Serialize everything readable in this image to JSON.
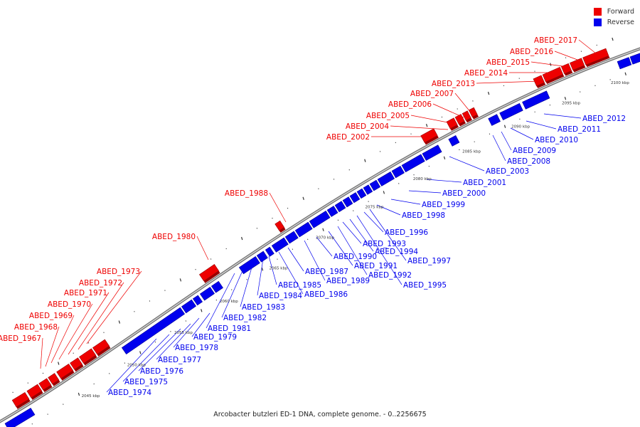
{
  "legend": {
    "forward": {
      "label": "Forward",
      "color": "#ee0000"
    },
    "reverse": {
      "label": "Reverse",
      "color": "#0000ee"
    }
  },
  "caption": "Arcobacter butzleri ED-1 DNA, complete genome. - 0..2256675",
  "axis_ticks": [
    "2045 kbp",
    "2050 kbp",
    "2055 kbp",
    "2060 kbp",
    "2065 kbp",
    "2070 kbp",
    "2075 kbp",
    "2080 kbp",
    "2085 kbp",
    "2090 kbp",
    "2095 kbp",
    "2100 kbp"
  ],
  "forward_genes": [
    "ABED_1967",
    "ABED_1968",
    "ABED_1969",
    "ABED_1970",
    "ABED_1971",
    "ABED_1972",
    "ABED_1973",
    "ABED_1980",
    "ABED_1988",
    "ABED_2002",
    "ABED_2004",
    "ABED_2005",
    "ABED_2006",
    "ABED_2007",
    "ABED_2013",
    "ABED_2014",
    "ABED_2015",
    "ABED_2016",
    "ABED_2017"
  ],
  "reverse_genes": [
    "ABED_1974",
    "ABED_1975",
    "ABED_1976",
    "ABED_1977",
    "ABED_1978",
    "ABED_1979",
    "ABED_1981",
    "ABED_1982",
    "ABED_1983",
    "ABED_1984",
    "ABED_1985",
    "ABED_1986",
    "ABED_1987",
    "ABED_1989",
    "ABED_1990",
    "ABED_1991",
    "ABED_1992",
    "ABED_1993",
    "ABED_1994",
    "ABED_1995",
    "ABED_1996",
    "ABED_1997",
    "ABED_1998",
    "ABED_1999",
    "ABED_2000",
    "ABED_2001",
    "ABED_2003",
    "ABED_2008",
    "ABED_2009",
    "ABED_2010",
    "ABED_2011",
    "ABED_2012"
  ]
}
